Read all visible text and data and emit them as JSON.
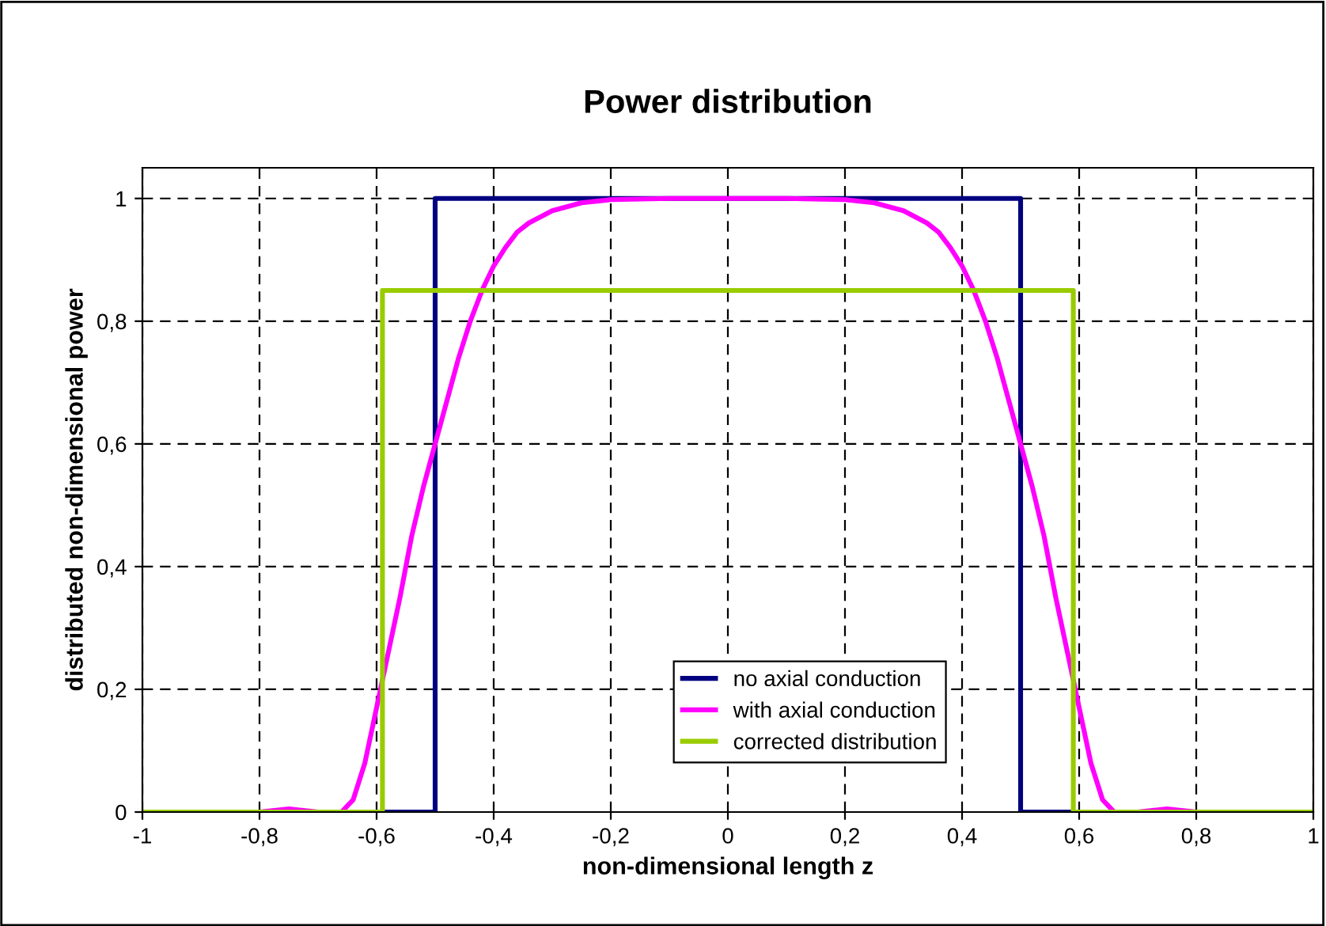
{
  "chart_data": {
    "type": "line",
    "title": "Power distribution",
    "xlabel": "non-dimensional length z",
    "ylabel": "distributed non-dimensional power",
    "xlim": [
      -1,
      1
    ],
    "ylim": [
      0,
      1.05
    ],
    "xticks": [
      {
        "value": -1,
        "label": "-1"
      },
      {
        "value": -0.8,
        "label": "-0,8"
      },
      {
        "value": -0.6,
        "label": "-0,6"
      },
      {
        "value": -0.4,
        "label": "-0,4"
      },
      {
        "value": -0.2,
        "label": "-0,2"
      },
      0,
      {
        "value": 0.2,
        "label": "0,2"
      },
      {
        "value": 0.4,
        "label": "0,4"
      },
      {
        "value": 0.6,
        "label": "0,6"
      },
      {
        "value": 0.8,
        "label": "0,8"
      },
      1
    ],
    "yticks": [
      0,
      {
        "value": 0.2,
        "label": "0,2"
      },
      {
        "value": 0.4,
        "label": "0,4"
      },
      {
        "value": 0.6,
        "label": "0,6"
      },
      {
        "value": 0.8,
        "label": "0,8"
      },
      1
    ],
    "grid": true,
    "legend": "bottom",
    "line_style": "solid",
    "marker": "none",
    "series": [
      {
        "name": "no axial conduction",
        "color": "#000080",
        "x": [
          -1,
          -0.5,
          -0.5,
          0.5,
          0.5,
          1
        ],
        "values": [
          0,
          0,
          1,
          1,
          0,
          0
        ]
      },
      {
        "name": "with axial conduction",
        "color": "#ff00ff",
        "x": [
          -1,
          -0.8,
          -0.75,
          -0.7,
          -0.66,
          -0.64,
          -0.62,
          -0.6,
          -0.58,
          -0.56,
          -0.54,
          -0.52,
          -0.5,
          -0.48,
          -0.46,
          -0.44,
          -0.42,
          -0.4,
          -0.38,
          -0.36,
          -0.34,
          -0.3,
          -0.25,
          -0.2,
          -0.1,
          0,
          0.1,
          0.2,
          0.25,
          0.3,
          0.34,
          0.36,
          0.38,
          0.4,
          0.42,
          0.44,
          0.46,
          0.48,
          0.5,
          0.52,
          0.54,
          0.56,
          0.58,
          0.6,
          0.62,
          0.64,
          0.66,
          0.7,
          0.75,
          0.8,
          1
        ],
        "values": [
          0,
          0,
          0.005,
          0,
          0,
          0.02,
          0.08,
          0.17,
          0.26,
          0.35,
          0.45,
          0.53,
          0.6,
          0.67,
          0.74,
          0.8,
          0.85,
          0.89,
          0.92,
          0.945,
          0.96,
          0.98,
          0.993,
          0.998,
          1,
          1,
          1,
          0.998,
          0.993,
          0.98,
          0.96,
          0.945,
          0.92,
          0.89,
          0.85,
          0.8,
          0.74,
          0.67,
          0.6,
          0.53,
          0.45,
          0.35,
          0.26,
          0.17,
          0.08,
          0.02,
          0,
          0,
          0.005,
          0,
          0
        ]
      },
      {
        "name": "corrected distribution",
        "color": "#99cc00",
        "x": [
          -1,
          -0.59,
          -0.59,
          0.59,
          0.59,
          1
        ],
        "values": [
          0,
          0,
          0.85,
          0.85,
          0,
          0
        ]
      }
    ]
  }
}
